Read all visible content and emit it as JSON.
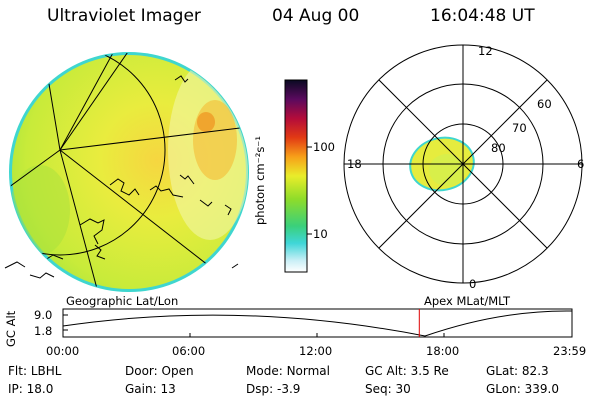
{
  "header": {
    "instrument": "Ultraviolet Imager",
    "date": "04 Aug 00",
    "time": "16:04:48 UT"
  },
  "colorbar": {
    "unit_label": "photon cm⁻²s⁻¹",
    "ticks": [
      "100",
      "10"
    ]
  },
  "polar_plot": {
    "mlt_labels": [
      "12",
      "18",
      "6",
      "0"
    ],
    "lat_labels": [
      "60",
      "70",
      "80"
    ]
  },
  "panel_labels": {
    "left": "Geographic Lat/Lon",
    "right": "Apex MLat/MLT"
  },
  "timeline": {
    "y_axis_title": "GC Alt",
    "y_ticks": [
      "9.0",
      "1.8"
    ],
    "x_ticks": [
      "00:00",
      "06:00",
      "12:00",
      "18:00",
      "23:59"
    ],
    "current_time_fraction": 0.7
  },
  "params": [
    {
      "label": "Flt:",
      "value": "LBHL"
    },
    {
      "label": "Door:",
      "value": "Open"
    },
    {
      "label": "Mode:",
      "value": "Normal"
    },
    {
      "label": "GC Alt:",
      "value": "3.5 Re"
    },
    {
      "label": "GLat:",
      "value": "82.3"
    },
    {
      "label": "IP:",
      "value": "18.0"
    },
    {
      "label": "Gain:",
      "value": "13"
    },
    {
      "label": "Dsp:",
      "value": "-3.9"
    },
    {
      "label": "Seq:",
      "value": "30"
    },
    {
      "label": "GLon:",
      "value": "339.0"
    }
  ]
}
